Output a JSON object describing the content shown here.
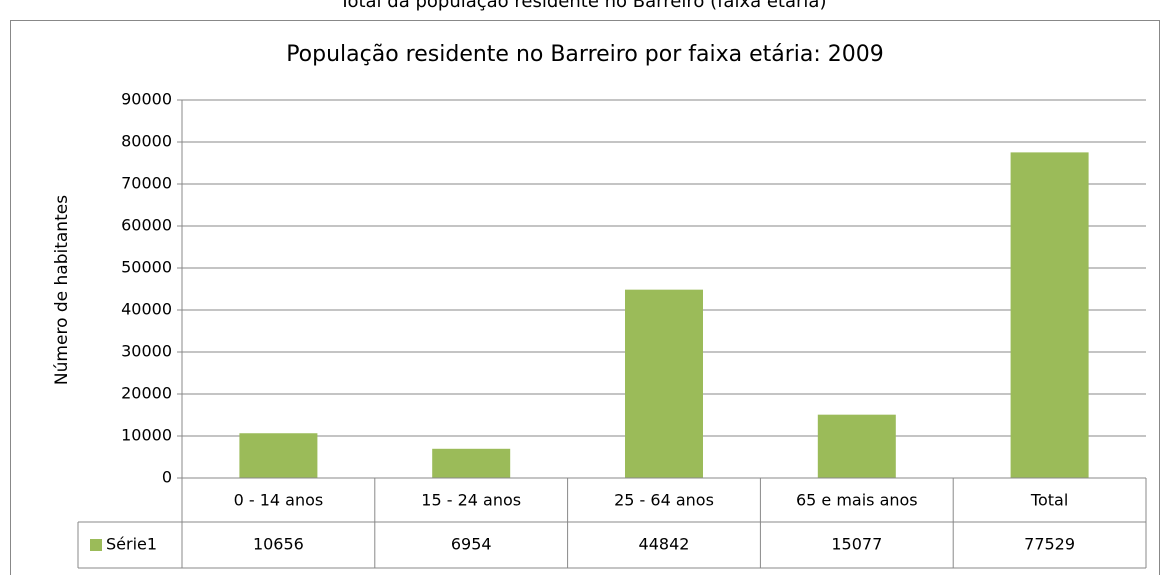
{
  "chart_data": {
    "type": "bar",
    "caption": "Total da população residente no Barreiro (faixa etária)",
    "title": "População residente no Barreiro por faixa etária: 2009",
    "ylabel": "Número de habitantes",
    "categories": [
      "0 - 14 anos",
      "15 - 24 anos",
      "25 - 64 anos",
      "65 e mais anos",
      "Total"
    ],
    "series": [
      {
        "name": "Série1",
        "color": "#9bbb59",
        "values": [
          10656,
          6954,
          44842,
          15077,
          77529
        ]
      }
    ],
    "ylim": [
      0,
      90000
    ],
    "yticks": [
      0,
      10000,
      20000,
      30000,
      40000,
      50000,
      60000,
      70000,
      80000,
      90000
    ],
    "grid": true,
    "data_table": true
  }
}
